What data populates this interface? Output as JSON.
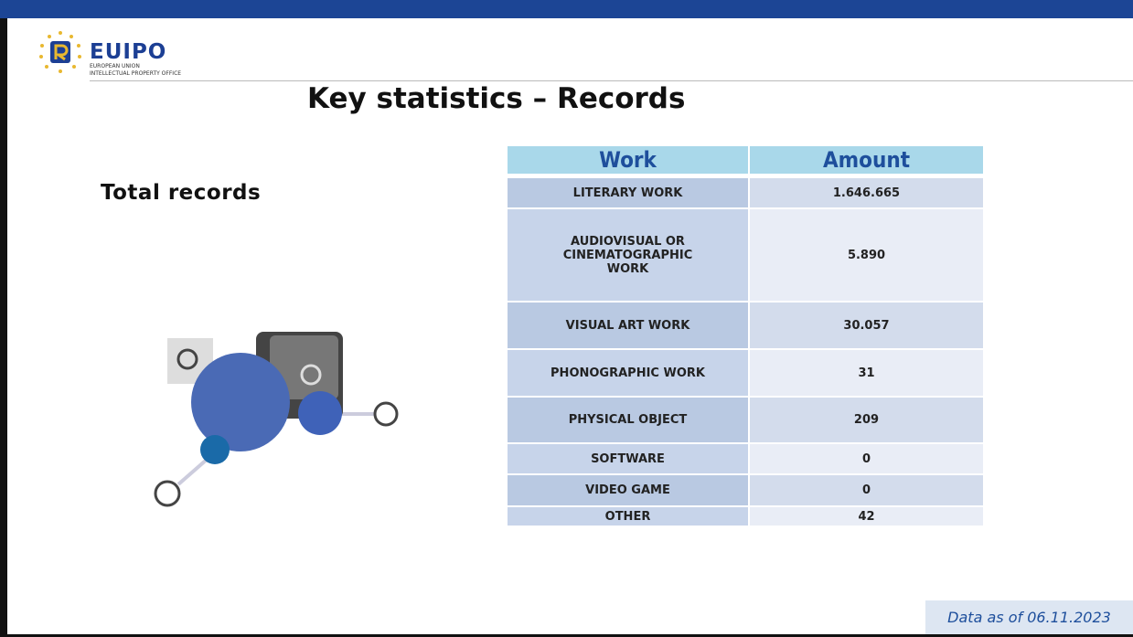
{
  "header": {
    "logo": "EUIPO",
    "org_line1": "EUROPEAN UNION",
    "org_line2": "INTELLECTUAL PROPERTY OFFICE"
  },
  "title": "Key statistics – Records",
  "subtitle": "Total records",
  "table": {
    "columns": [
      "Work",
      "Amount"
    ],
    "rows": [
      [
        "LITERARY WORK",
        "1.646.665"
      ],
      [
        "AUDIOVISUAL OR CINEMATOGRAPHIC WORK",
        "5.890"
      ],
      [
        "VISUAL ART WORK",
        "30.057"
      ],
      [
        "PHONOGRAPHIC WORK",
        "31"
      ],
      [
        "PHYSICAL OBJECT",
        "209"
      ],
      [
        "SOFTWARE",
        "0"
      ],
      [
        "VIDEO GAME",
        "0"
      ],
      [
        "OTHER",
        "42"
      ]
    ]
  },
  "footer": "Data as of 06.11.2023"
}
